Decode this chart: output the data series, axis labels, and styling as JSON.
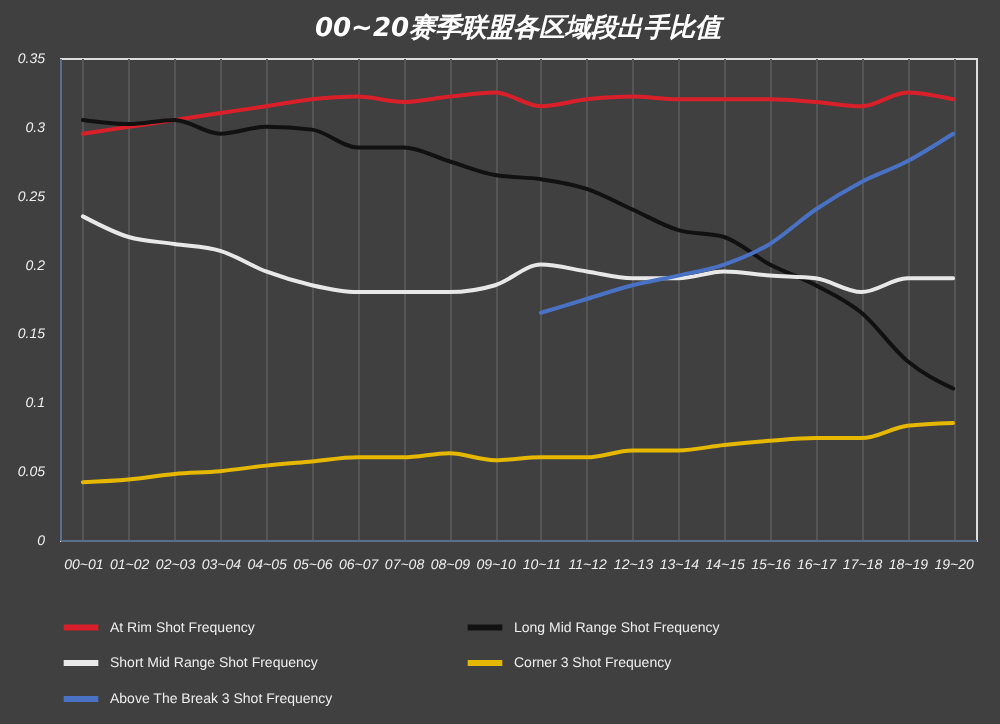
{
  "chart_data": {
    "type": "line",
    "title": "00~20赛季联盟各区域段出手比值",
    "categories": [
      "00~01",
      "01~02",
      "02~03",
      "03~04",
      "04~05",
      "05~06",
      "06~07",
      "07~08",
      "08~09",
      "09~10",
      "10~11",
      "11~12",
      "12~13",
      "13~14",
      "14~15",
      "15~16",
      "16~17",
      "17~18",
      "18~19",
      "19~20"
    ],
    "series": [
      {
        "name": "At Rim Shot Frequency",
        "color": "#d9202a",
        "values": [
          0.295,
          0.3,
          0.305,
          0.31,
          0.315,
          0.32,
          0.322,
          0.318,
          0.322,
          0.325,
          0.315,
          0.32,
          0.322,
          0.32,
          0.32,
          0.32,
          0.318,
          0.315,
          0.325,
          0.32
        ]
      },
      {
        "name": "Long Mid Range Shot Frequency",
        "color": "#111111",
        "values": [
          0.305,
          0.302,
          0.305,
          0.295,
          0.3,
          0.298,
          0.285,
          0.285,
          0.275,
          0.265,
          0.262,
          0.255,
          0.24,
          0.225,
          0.22,
          0.2,
          0.185,
          0.165,
          0.13,
          0.11
        ]
      },
      {
        "name": "Short Mid Range Shot Frequency",
        "color": "#e8e8e8",
        "values": [
          0.235,
          0.22,
          0.215,
          0.21,
          0.195,
          0.185,
          0.18,
          0.18,
          0.18,
          0.185,
          0.2,
          0.195,
          0.19,
          0.19,
          0.195,
          0.192,
          0.19,
          0.18,
          0.19,
          0.19
        ]
      },
      {
        "name": "Corner 3 Shot Frequency",
        "color": "#e6b800",
        "values": [
          0.042,
          0.044,
          0.048,
          0.05,
          0.054,
          0.057,
          0.06,
          0.06,
          0.063,
          0.058,
          0.06,
          0.06,
          0.065,
          0.065,
          0.069,
          0.072,
          0.074,
          0.074,
          0.083,
          0.085
        ]
      },
      {
        "name": "Above The Break 3 Shot Frequency",
        "color": "#4a72c4",
        "values": [
          null,
          null,
          null,
          null,
          null,
          null,
          null,
          null,
          null,
          null,
          0.165,
          0.175,
          0.185,
          0.192,
          0.2,
          0.215,
          0.24,
          0.26,
          0.275,
          0.295
        ]
      }
    ],
    "ylim": [
      0,
      0.35
    ],
    "yticks": [
      0,
      0.05,
      0.1,
      0.15,
      0.2,
      0.25,
      0.3,
      0.35
    ],
    "grid": "x",
    "legend": "bottom",
    "marker": "none",
    "line_style": "solid"
  }
}
